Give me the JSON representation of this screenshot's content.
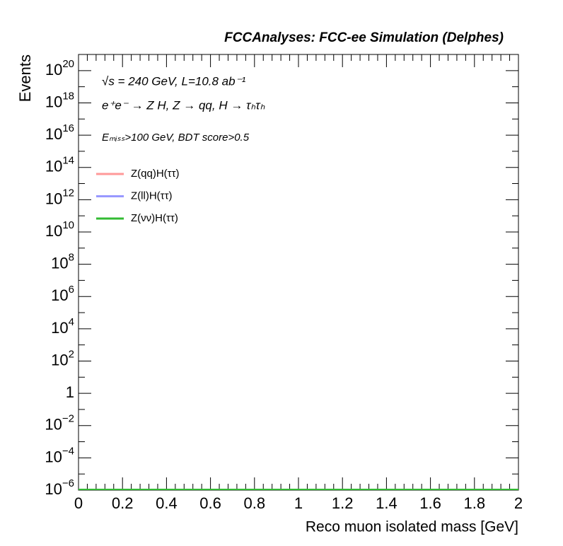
{
  "chart_data": {
    "type": "hist",
    "title": "FCCAnalyses: FCC-ee Simulation (Delphes)",
    "x_label": "Reco muon isolated mass [GeV]",
    "y_label": "Events",
    "annotations": [
      "√s = 240 GeV, L=10.8 ab⁻¹",
      "e⁺e⁻ → Z H, Z → qq, H → τₕτₕ",
      "Eₘᵢₛₛ>100 GeV, BDT score>0.5"
    ],
    "log_y": true,
    "xlim": [
      0,
      2
    ],
    "xticks": [
      0,
      0.2,
      0.4,
      0.6,
      0.8,
      1,
      1.2,
      1.4,
      1.6,
      1.8,
      2
    ],
    "ylim": [
      1e-06,
      1e+21
    ],
    "yticks": [
      {
        "value": 1e-06,
        "label": "10^-6"
      },
      {
        "value": 0.0001,
        "label": "10^-4"
      },
      {
        "value": 0.01,
        "label": "10^-2"
      },
      1,
      {
        "value": 100,
        "label": "10^2"
      },
      {
        "value": 10000.0,
        "label": "10^4"
      },
      {
        "value": 1000000.0,
        "label": "10^6"
      },
      {
        "value": 100000000.0,
        "label": "10^8"
      },
      {
        "value": 10000000000.0,
        "label": "10^10"
      },
      {
        "value": 1000000000000.0,
        "label": "10^12"
      },
      {
        "value": 100000000000000.0,
        "label": "10^14"
      },
      {
        "value": 1e+16,
        "label": "10^16"
      },
      {
        "value": 1e+18,
        "label": "10^18"
      },
      {
        "value": 1e+20,
        "label": "10^20"
      }
    ],
    "series": [
      {
        "name": "Z(qq)H(ττ)",
        "color": "#ff9999"
      },
      {
        "name": "Z(ll)H(ττ)",
        "color": "#9999ff"
      },
      {
        "name": "Z(νν)H(ττ)",
        "color": "#33bb33"
      }
    ]
  }
}
